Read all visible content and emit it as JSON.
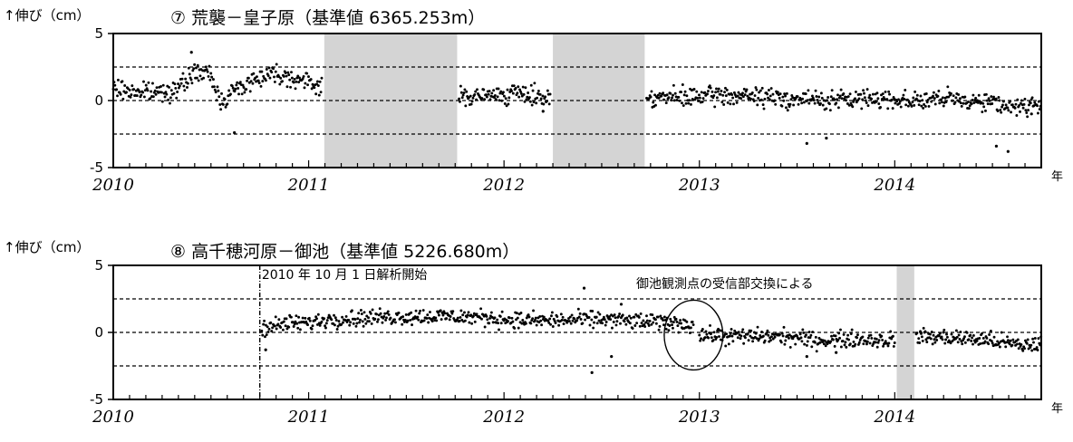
{
  "chart_data": [
    {
      "type": "scatter",
      "title": "⑦ 荒襲－皇子原（基準値 6365.253m）",
      "ylabel": "↑伸び（cm）",
      "xlabel": "年",
      "x_tick_labels": [
        "2010",
        "2011",
        "2012",
        "2013",
        "2014"
      ],
      "x_ticks": [
        2010,
        2011,
        2012,
        2013,
        2014
      ],
      "y_tick_labels": [
        "5",
        "0",
        "-5"
      ],
      "ylim": [
        -5,
        5
      ],
      "xlim": [
        2010.0,
        2014.75
      ],
      "reference_lines": [
        2.5,
        -2.5
      ],
      "grid": false,
      "shaded_ranges": [
        [
          2011.08,
          2011.76
        ],
        [
          2012.25,
          2012.72
        ]
      ],
      "series": [
        {
          "segments": [
            {
              "x": [
                2010.0,
                2010.1,
                2010.2,
                2010.3,
                2010.35,
                2010.4,
                2010.45,
                2010.5,
                2010.55,
                2010.6,
                2010.7,
                2010.8,
                2010.9,
                2011.0,
                2011.07
              ],
              "y": [
                0.9,
                0.7,
                0.6,
                0.8,
                1.0,
                2.0,
                2.1,
                1.8,
                -0.1,
                0.6,
                1.4,
                2.1,
                1.8,
                1.3,
                1.1
              ]
            },
            {
              "x": [
                2011.77,
                2011.9,
                2012.0,
                2012.1,
                2012.24
              ],
              "y": [
                0.3,
                0.3,
                0.5,
                0.5,
                0.2
              ]
            },
            {
              "x": [
                2012.73,
                2012.9,
                2013.1,
                2013.3,
                2013.5,
                2013.7,
                2013.9,
                2014.1,
                2014.3,
                2014.5,
                2014.6,
                2014.75
              ],
              "y": [
                0.3,
                0.2,
                0.4,
                0.3,
                0.1,
                0.0,
                0.2,
                0.0,
                0.1,
                -0.1,
                -0.5,
                -0.3
              ]
            }
          ],
          "outliers": {
            "x": [
              2010.4,
              2010.62,
              2012.2,
              2013.55,
              2013.65,
              2014.52,
              2014.58,
              2014.7
            ],
            "y": [
              3.6,
              -2.4,
              -0.8,
              -3.2,
              -2.8,
              -3.4,
              -3.8,
              -1.0
            ]
          },
          "jitter": 0.35
        }
      ]
    },
    {
      "type": "scatter",
      "title": "⑧ 高千穂河原－御池（基準値 5226.680m）",
      "ylabel": "↑伸び（cm）",
      "xlabel": "年",
      "x_tick_labels": [
        "2010",
        "2011",
        "2012",
        "2013",
        "2014"
      ],
      "x_ticks": [
        2010,
        2011,
        2012,
        2013,
        2014
      ],
      "y_tick_labels": [
        "5",
        "0",
        "-5"
      ],
      "ylim": [
        -5,
        5
      ],
      "xlim": [
        2010.0,
        2014.75
      ],
      "reference_lines": [
        2.5,
        -2.5
      ],
      "grid": false,
      "shaded_ranges": [
        [
          2014.01,
          2014.1
        ]
      ],
      "vertical_marker_x": 2010.75,
      "annotations": [
        {
          "text": "2010 年 10 月 1 日解析開始",
          "x": 2010.76,
          "y": 4.0
        },
        {
          "text": "御池観測点の受信部交換による",
          "x": 2012.63,
          "y": 3.3
        }
      ],
      "ellipse": {
        "cx": 2012.97,
        "cy": -0.2,
        "rx": 0.15,
        "ry": 2.6
      },
      "series": [
        {
          "segments": [
            {
              "x": [
                2010.76,
                2010.9,
                2011.0,
                2011.1,
                2011.3,
                2011.5,
                2011.7,
                2011.9,
                2012.1,
                2012.3,
                2012.5,
                2012.7,
                2012.9,
                2012.97
              ],
              "y": [
                0.3,
                0.7,
                0.7,
                1.0,
                1.1,
                1.2,
                1.2,
                1.1,
                0.9,
                0.9,
                1.0,
                0.8,
                0.7,
                0.6
              ]
            },
            {
              "x": [
                2013.0,
                2013.2,
                2013.4,
                2013.6,
                2013.8,
                2014.0
              ],
              "y": [
                -0.2,
                -0.3,
                -0.3,
                -0.6,
                -0.5,
                -0.6
              ]
            },
            {
              "x": [
                2014.11,
                2014.3,
                2014.5,
                2014.65,
                2014.75
              ],
              "y": [
                -0.3,
                -0.4,
                -0.6,
                -1.0,
                -0.8
              ]
            }
          ],
          "outliers": {
            "x": [
              2010.78,
              2012.41,
              2012.45,
              2012.55,
              2012.6,
              2013.55,
              2013.7
            ],
            "y": [
              -1.3,
              3.3,
              -3.0,
              -1.8,
              2.1,
              -1.8,
              -1.5
            ]
          },
          "jitter": 0.3
        }
      ]
    }
  ],
  "x_unit": "年"
}
